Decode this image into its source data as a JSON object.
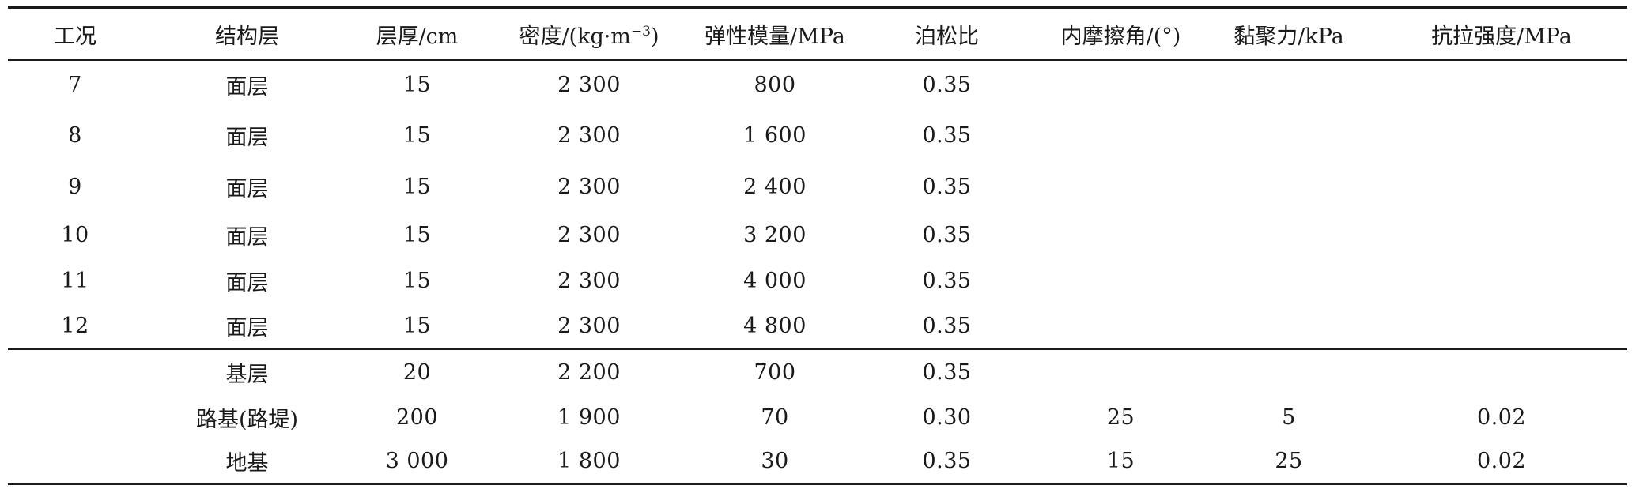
{
  "table": {
    "headers": [
      {
        "label": "工况"
      },
      {
        "label": "结构层"
      },
      {
        "label": "层厚/cm"
      },
      {
        "label": "密度/(kg·m",
        "sup": "−3",
        "suffix": ")"
      },
      {
        "label": "弹性模量/MPa"
      },
      {
        "label": "泊松比"
      },
      {
        "label": "内摩擦角/(°)"
      },
      {
        "label": "黏聚力/kPa"
      },
      {
        "label": "抗拉强度/MPa"
      }
    ],
    "rows": [
      [
        "7",
        "面层",
        "15",
        "2 300",
        "800",
        "0.35",
        "",
        "",
        ""
      ],
      [
        "8",
        "面层",
        "15",
        "2 300",
        "1 600",
        "0.35",
        "",
        "",
        ""
      ],
      [
        "9",
        "面层",
        "15",
        "2 300",
        "2 400",
        "0.35",
        "",
        "",
        ""
      ],
      [
        "10",
        "面层",
        "15",
        "2 300",
        "3 200",
        "0.35",
        "",
        "",
        ""
      ],
      [
        "11",
        "面层",
        "15",
        "2 300",
        "4 000",
        "0.35",
        "",
        "",
        ""
      ],
      [
        "12",
        "面层",
        "15",
        "2 300",
        "4 800",
        "0.35",
        "",
        "",
        ""
      ],
      [
        "",
        "基层",
        "20",
        "2 200",
        "700",
        "0.35",
        "",
        "",
        ""
      ],
      [
        "",
        "路基(路堤)",
        "200",
        "1 900",
        "70",
        "0.30",
        "25",
        "5",
        "0.02"
      ],
      [
        "",
        "地基",
        "3 000",
        "1 800",
        "30",
        "0.35",
        "15",
        "25",
        "0.02"
      ]
    ]
  }
}
